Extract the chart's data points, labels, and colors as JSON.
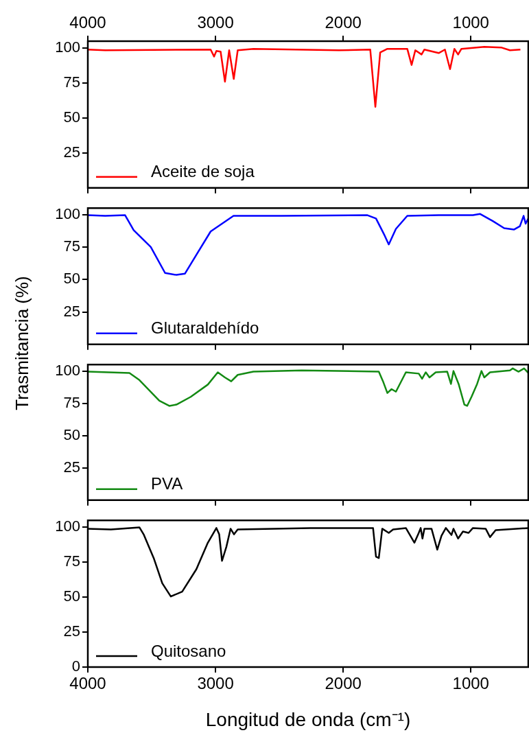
{
  "chart_data": [
    {
      "type": "line",
      "xlim": [
        4000,
        550
      ],
      "xticks": [
        4000,
        3000,
        2000,
        1000
      ],
      "x2lim": [
        4000,
        550
      ],
      "x2ticks": [
        4000,
        3000,
        2000,
        1000
      ],
      "ylim": [
        0,
        105
      ],
      "yticks": [
        25,
        50,
        75,
        100
      ],
      "grid": false,
      "legend": "bottom left",
      "tick_labels": "y",
      "series": [
        {
          "name": "Aceite de soja",
          "color": "#ff0000",
          "x": [
            4000,
            3864,
            3038,
            3011,
            2993,
            2960,
            2926,
            2893,
            2857,
            2826,
            2703,
            2034,
            1788,
            1748,
            1710,
            1654,
            1498,
            1464,
            1435,
            1386,
            1364,
            1252,
            1203,
            1163,
            1129,
            1100,
            1074,
            895,
            763,
            694,
            612
          ],
          "values": [
            99,
            98.5,
            99,
            94,
            98,
            97.5,
            76,
            98.5,
            78,
            98.5,
            99.5,
            98.5,
            99,
            58,
            97,
            99.5,
            99.5,
            88,
            98.5,
            95.5,
            99,
            96.5,
            99,
            85,
            99.5,
            95.5,
            99.5,
            101,
            100.5,
            98.5,
            99
          ]
        }
      ]
    },
    {
      "type": "line",
      "xlim": [
        4000,
        550
      ],
      "xticks": [
        4000,
        3000,
        2000,
        1000
      ],
      "ylim": [
        0,
        105
      ],
      "yticks": [
        25,
        50,
        75,
        100
      ],
      "grid": false,
      "legend": "bottom left",
      "tick_labels": "y",
      "ylabel": "Trasmitancia (%)",
      "series": [
        {
          "name": "Glutaraldehído",
          "color": "#0000ff",
          "x": [
            4000,
            3864,
            3708,
            3641,
            3507,
            3395,
            3306,
            3239,
            3150,
            3038,
            2859,
            2480,
            1810,
            1743,
            1676,
            1643,
            1587,
            1498,
            1252,
            984,
            929,
            828,
            739,
            661,
            616,
            587,
            571,
            550
          ],
          "values": [
            99.5,
            99,
            99.5,
            88,
            75,
            55,
            53.5,
            54.5,
            69,
            87,
            99,
            99,
            99.5,
            97,
            84,
            77,
            89,
            99,
            99.5,
            99.5,
            100.5,
            95,
            89.5,
            88.5,
            91,
            99,
            93,
            97
          ]
        }
      ]
    },
    {
      "type": "line",
      "xlim": [
        4000,
        550
      ],
      "xticks": [
        4000,
        3000,
        2000,
        1000
      ],
      "ylim": [
        0,
        105
      ],
      "yticks": [
        25,
        50,
        75,
        100
      ],
      "grid": false,
      "legend": "bottom left",
      "tick_labels": "y",
      "series": [
        {
          "name": "PVA",
          "color": "#138a13",
          "x": [
            4000,
            3674,
            3596,
            3440,
            3362,
            3306,
            3194,
            3060,
            2982,
            2926,
            2877,
            2826,
            2703,
            2324,
            1721,
            1688,
            1654,
            1621,
            1587,
            1509,
            1408,
            1382,
            1353,
            1324,
            1275,
            1185,
            1156,
            1136,
            1096,
            1051,
            1029,
            995,
            951,
            917,
            895,
            850,
            694,
            672,
            627,
            583,
            550
          ],
          "values": [
            99.5,
            98.5,
            93,
            77,
            73,
            74,
            80,
            89.5,
            99,
            95,
            92,
            97,
            99.5,
            100.5,
            99.5,
            92,
            83,
            86,
            84,
            99,
            98,
            94,
            99,
            95,
            99,
            99.5,
            90,
            100,
            90,
            74,
            73,
            80,
            90,
            100,
            95,
            99,
            100.5,
            102,
            99.5,
            102,
            98.5
          ]
        }
      ]
    },
    {
      "type": "line",
      "xlim": [
        4000,
        550
      ],
      "xticks": [
        4000,
        3000,
        2000,
        1000
      ],
      "ylim": [
        0,
        105
      ],
      "yticks": [
        0,
        25,
        50,
        75,
        100
      ],
      "grid": false,
      "legend": "bottom left",
      "xlabel": "Longitud de onda (cm⁻¹)",
      "series": [
        {
          "name": "Quitosano",
          "color": "#000000",
          "x": [
            4000,
            3819,
            3596,
            3563,
            3484,
            3417,
            3350,
            3261,
            3150,
            3060,
            2993,
            2971,
            2949,
            2915,
            2882,
            2855,
            2826,
            2257,
            1766,
            1743,
            1721,
            1694,
            1643,
            1609,
            1509,
            1442,
            1408,
            1393,
            1379,
            1364,
            1308,
            1263,
            1230,
            1196,
            1152,
            1136,
            1100,
            1062,
            1018,
            984,
            884,
            850,
            806,
            550
          ],
          "values": [
            99,
            98.5,
            100,
            95,
            78,
            60,
            50.5,
            54,
            70,
            89,
            99.5,
            95,
            76,
            86,
            99,
            95,
            98.5,
            99.5,
            99.5,
            79,
            78,
            99,
            96,
            98.5,
            99.5,
            89,
            96,
            99.5,
            92,
            99,
            99,
            84,
            94,
            99.5,
            94.5,
            99,
            92,
            97,
            96,
            99.5,
            99,
            93,
            98,
            99.5
          ]
        }
      ]
    }
  ]
}
